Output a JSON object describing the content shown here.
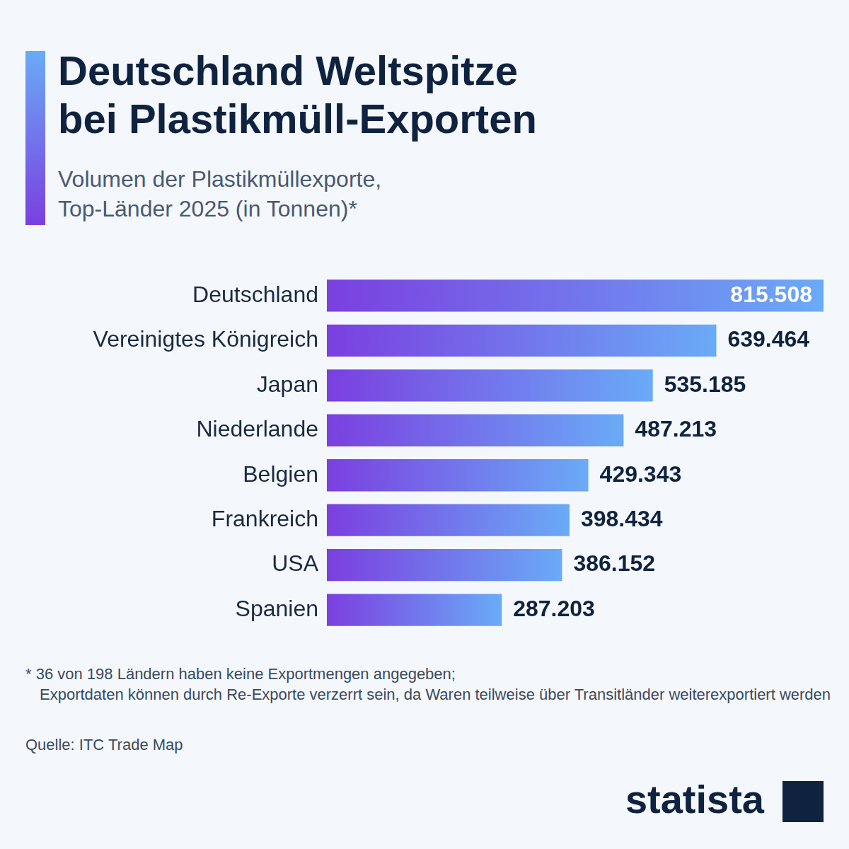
{
  "chart_data": {
    "type": "bar",
    "orientation": "horizontal",
    "title": "Deutschland Weltspitze\nbei Plastikmüll-Exporten",
    "subtitle": "Volumen der Plastikmüllexporte,\nTop-Länder 2025 (in Tonnen)*",
    "categories": [
      "Deutschland",
      "Vereinigtes Königreich",
      "Japan",
      "Niederlande",
      "Belgien",
      "Frankreich",
      "USA",
      "Spanien"
    ],
    "values": [
      815508,
      639464,
      535185,
      487213,
      429343,
      398434,
      386152,
      287203
    ],
    "value_labels": [
      "815.508",
      "639.464",
      "535.185",
      "487.213",
      "429.343",
      "398.434",
      "386.152",
      "287.203"
    ],
    "color": "#7b3fe0",
    "xlim": [
      0,
      815508
    ],
    "grid": false,
    "data_labels": true,
    "tick_labels": "y",
    "footnote": "* 36 von 198 Ländern haben keine Exportmengen angegeben;\nExportdaten können durch Re-Exporte verzerrt sein, da Waren teilweise über Transitländer weiterexportiert werden",
    "source": "Quelle: ITC Trade Map",
    "brand": "statista"
  }
}
